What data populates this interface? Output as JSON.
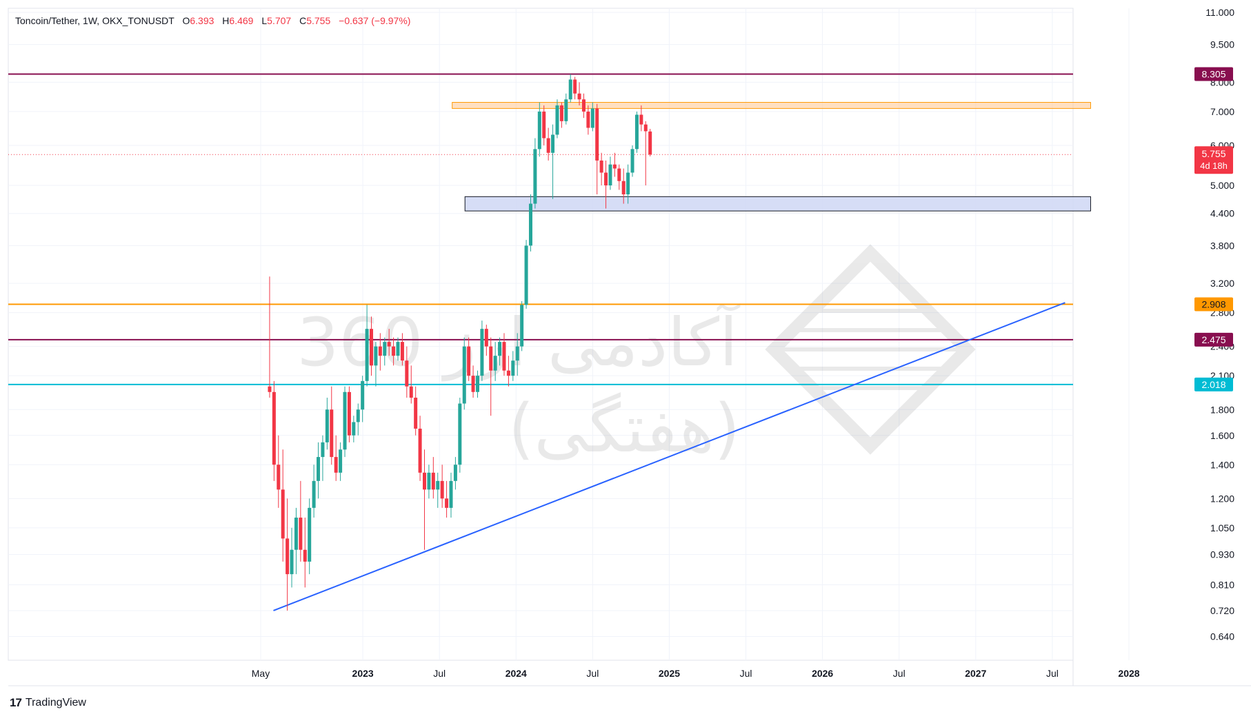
{
  "header": {
    "symbol": "Toncoin/Tether, 1W, OKX_TONUSDT",
    "o_label": "O",
    "o_value": "6.393",
    "h_label": "H",
    "h_value": "6.469",
    "l_label": "L",
    "l_value": "5.707",
    "c_label": "C",
    "c_value": "5.755",
    "change": "−0.637 (−9.97%)"
  },
  "branding": {
    "name": "TradingView",
    "logo_icon": "tradingview-logo-icon"
  },
  "watermark": {
    "text_line1": "آکادمی ارز 360",
    "text_line2": "(هفتگی)"
  },
  "colors": {
    "up": "#26a69a",
    "down": "#f23645",
    "maroon": "#880e4f",
    "orange": "#ff9800",
    "cyan": "#00bcd4",
    "trend": "#2962ff",
    "zone_supply": "#ffcc99",
    "zone_demand": "#d1d9f5"
  },
  "chart_data": {
    "type": "candlestick",
    "scale": "log",
    "y_ticks": [
      "11.000",
      "9.500",
      "8.000",
      "7.000",
      "6.000",
      "5.000",
      "4.400",
      "3.800",
      "3.200",
      "2.800",
      "2.400",
      "2.100",
      "1.800",
      "1.600",
      "1.400",
      "1.200",
      "1.050",
      "0.930",
      "0.810",
      "0.720",
      "0.640"
    ],
    "x_ticks": [
      "May",
      "2023",
      "Jul",
      "2024",
      "Jul",
      "2025",
      "Jul",
      "2026",
      "Jul",
      "2027",
      "Jul",
      "2028"
    ],
    "horizontal_levels": [
      {
        "value": 8.305,
        "label": "8.305",
        "color": "#880e4f"
      },
      {
        "value": 2.908,
        "label": "2.908",
        "color": "#ff9800"
      },
      {
        "value": 2.475,
        "label": "2.475",
        "color": "#880e4f"
      },
      {
        "value": 2.018,
        "label": "2.018",
        "color": "#00bcd4"
      }
    ],
    "current_price": {
      "value": 5.755,
      "label": "5.755",
      "countdown": "4d 18h"
    },
    "zones": [
      {
        "name": "supply-zone",
        "from": "2023-08",
        "to": "2027-10",
        "low": 7.1,
        "high": 7.3
      },
      {
        "name": "demand-zone",
        "from": "2023-09",
        "to": "2027-10",
        "low": 4.45,
        "high": 4.75
      }
    ],
    "trendline": {
      "start": [
        "2022-06",
        0.72
      ],
      "end": [
        "2027-08",
        2.93
      ]
    },
    "candles_weekly_approx": [
      [
        2.0,
        3.3,
        1.9,
        1.95
      ],
      [
        1.95,
        2.05,
        1.3,
        1.4
      ],
      [
        1.4,
        1.6,
        1.15,
        1.25
      ],
      [
        1.25,
        1.5,
        0.9,
        1.0
      ],
      [
        1.0,
        1.2,
        0.72,
        0.85
      ],
      [
        0.85,
        1.05,
        0.8,
        0.95
      ],
      [
        0.95,
        1.15,
        0.85,
        1.1
      ],
      [
        1.1,
        1.3,
        0.9,
        0.95
      ],
      [
        0.95,
        1.1,
        0.8,
        0.9
      ],
      [
        0.9,
        1.2,
        0.85,
        1.15
      ],
      [
        1.15,
        1.4,
        1.1,
        1.3
      ],
      [
        1.3,
        1.55,
        1.2,
        1.45
      ],
      [
        1.45,
        1.6,
        1.3,
        1.55
      ],
      [
        1.55,
        1.9,
        1.5,
        1.8
      ],
      [
        1.8,
        2.0,
        1.4,
        1.45
      ],
      [
        1.45,
        1.6,
        1.3,
        1.35
      ],
      [
        1.35,
        1.55,
        1.3,
        1.5
      ],
      [
        1.5,
        2.0,
        1.45,
        1.95
      ],
      [
        1.95,
        2.0,
        1.55,
        1.6
      ],
      [
        1.6,
        1.75,
        1.55,
        1.7
      ],
      [
        1.7,
        1.85,
        1.6,
        1.8
      ],
      [
        1.8,
        2.1,
        1.7,
        2.05
      ],
      [
        2.05,
        2.9,
        2.0,
        2.6
      ],
      [
        2.6,
        2.75,
        2.1,
        2.2
      ],
      [
        2.2,
        2.45,
        2.0,
        2.4
      ],
      [
        2.4,
        2.55,
        2.15,
        2.3
      ],
      [
        2.3,
        2.5,
        2.2,
        2.45
      ],
      [
        2.45,
        2.6,
        2.3,
        2.4
      ],
      [
        2.4,
        2.5,
        2.2,
        2.3
      ],
      [
        2.3,
        2.5,
        2.25,
        2.45
      ],
      [
        2.45,
        2.55,
        2.2,
        2.25
      ],
      [
        2.25,
        2.4,
        1.9,
        2.0
      ],
      [
        2.0,
        2.2,
        1.85,
        1.9
      ],
      [
        1.9,
        2.0,
        1.6,
        1.65
      ],
      [
        1.65,
        1.75,
        1.3,
        1.35
      ],
      [
        1.35,
        1.5,
        0.95,
        1.25
      ],
      [
        1.25,
        1.4,
        1.2,
        1.35
      ],
      [
        1.35,
        1.45,
        1.2,
        1.25
      ],
      [
        1.25,
        1.35,
        1.15,
        1.3
      ],
      [
        1.3,
        1.4,
        1.15,
        1.2
      ],
      [
        1.2,
        1.3,
        1.1,
        1.15
      ],
      [
        1.15,
        1.35,
        1.1,
        1.3
      ],
      [
        1.3,
        1.45,
        1.25,
        1.4
      ],
      [
        1.4,
        1.9,
        1.35,
        1.85
      ],
      [
        1.85,
        2.5,
        1.8,
        2.4
      ],
      [
        2.4,
        2.5,
        2.05,
        2.1
      ],
      [
        2.1,
        2.2,
        1.9,
        1.95
      ],
      [
        1.95,
        2.15,
        1.9,
        2.1
      ],
      [
        2.1,
        2.7,
        2.05,
        2.6
      ],
      [
        2.6,
        2.65,
        2.3,
        2.4
      ],
      [
        2.4,
        2.5,
        1.75,
        2.15
      ],
      [
        2.15,
        2.45,
        2.05,
        2.3
      ],
      [
        2.3,
        2.5,
        2.2,
        2.45
      ],
      [
        2.45,
        2.55,
        2.1,
        2.15
      ],
      [
        2.15,
        2.3,
        2.0,
        2.1
      ],
      [
        2.1,
        2.35,
        2.05,
        2.25
      ],
      [
        2.25,
        2.55,
        2.1,
        2.4
      ],
      [
        2.4,
        2.95,
        2.35,
        2.9
      ],
      [
        2.9,
        3.9,
        2.85,
        3.8
      ],
      [
        3.8,
        4.8,
        3.7,
        4.6
      ],
      [
        4.6,
        6.2,
        4.5,
        5.9
      ],
      [
        5.9,
        7.3,
        5.7,
        7.0
      ],
      [
        7.0,
        7.2,
        6.0,
        6.2
      ],
      [
        6.2,
        6.5,
        5.6,
        5.8
      ],
      [
        5.8,
        6.6,
        4.7,
        6.3
      ],
      [
        6.3,
        7.4,
        6.2,
        7.2
      ],
      [
        7.2,
        7.3,
        6.5,
        6.7
      ],
      [
        6.7,
        7.6,
        6.6,
        7.4
      ],
      [
        7.4,
        8.3,
        7.3,
        8.1
      ],
      [
        8.1,
        8.2,
        7.4,
        7.6
      ],
      [
        7.6,
        8.0,
        7.2,
        7.4
      ],
      [
        7.4,
        7.6,
        6.8,
        7.0
      ],
      [
        7.0,
        7.2,
        6.3,
        6.5
      ],
      [
        6.5,
        7.3,
        6.4,
        7.1
      ],
      [
        7.1,
        7.25,
        4.8,
        5.6
      ],
      [
        5.6,
        5.8,
        5.0,
        5.3
      ],
      [
        5.3,
        5.6,
        4.5,
        5.0
      ],
      [
        5.0,
        5.7,
        4.9,
        5.5
      ],
      [
        5.5,
        5.8,
        5.2,
        5.4
      ],
      [
        5.4,
        5.5,
        4.9,
        5.1
      ],
      [
        5.1,
        5.4,
        4.6,
        4.8
      ],
      [
        4.8,
        5.5,
        4.6,
        5.3
      ],
      [
        5.3,
        6.0,
        5.2,
        5.9
      ],
      [
        5.9,
        7.0,
        5.8,
        6.9
      ],
      [
        6.9,
        7.2,
        6.4,
        6.6
      ],
      [
        6.6,
        6.7,
        5.0,
        6.4
      ],
      [
        6.393,
        6.469,
        5.707,
        5.755
      ]
    ]
  }
}
